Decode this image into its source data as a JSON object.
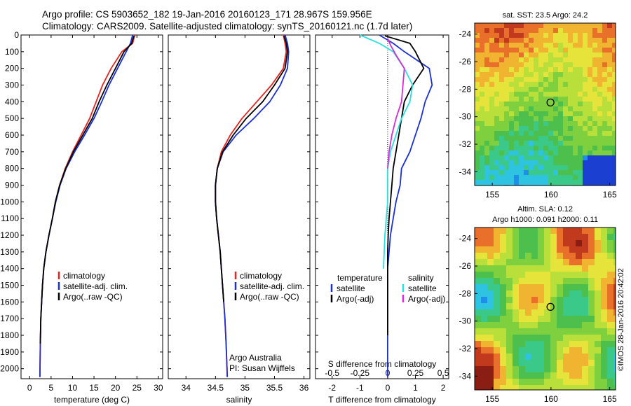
{
  "header": {
    "line1": "Argo profile: CS 5903652_182 19-Jan-2016 20160123_171 28.967S 159.956E",
    "line2": "Climatology: CARS2009. Satellite-adjusted climatology: synTS_20160121.nc (1.7d later)"
  },
  "colors": {
    "climatology": "#e8231e",
    "satellite": "#1a2fd6",
    "argo": "#000000",
    "sat_salinity": "#28e0e0",
    "argo_salinity": "#d82cd8"
  },
  "charts": [
    {
      "id": "temperature",
      "type": "line",
      "xlabel": "temperature (deg C)",
      "xlim": [
        -2,
        31
      ],
      "ylim": [
        0,
        2060
      ],
      "xticks": [
        0,
        5,
        10,
        15,
        20,
        25,
        30
      ],
      "yticks": [
        0,
        100,
        200,
        300,
        400,
        500,
        600,
        700,
        800,
        900,
        1000,
        1100,
        1200,
        1300,
        1400,
        1500,
        1600,
        1700,
        1800,
        1900,
        2000
      ],
      "legend": [
        "climatology",
        "satellite-adj. clim.",
        "Argo(..raw -QC)"
      ],
      "series": [
        {
          "name": "climatology",
          "color": "#e8231e",
          "x": [
            24.5,
            24.0,
            21.5,
            19.0,
            17.0,
            15.5,
            14.0,
            12.0,
            10.0,
            8.3,
            7.0,
            6.0,
            5.3,
            4.5,
            3.8,
            3.3,
            3.0,
            2.8,
            2.6,
            2.5,
            2.4
          ],
          "y": [
            0,
            50,
            100,
            200,
            300,
            400,
            500,
            600,
            700,
            800,
            900,
            1000,
            1100,
            1200,
            1300,
            1400,
            1500,
            1600,
            1700,
            1850,
            2050
          ]
        },
        {
          "name": "satellite-adj. clim.",
          "color": "#1a2fd6",
          "x": [
            24.0,
            23.5,
            22.5,
            20.5,
            18.5,
            16.8,
            15.0,
            12.8,
            10.5,
            8.5,
            7.1,
            6.1,
            5.3,
            4.5,
            3.8,
            3.3,
            3.0,
            2.8,
            2.6,
            2.5,
            2.4
          ],
          "y": [
            0,
            50,
            100,
            200,
            300,
            400,
            500,
            600,
            700,
            800,
            900,
            1000,
            1100,
            1200,
            1300,
            1400,
            1500,
            1600,
            1700,
            1850,
            2050
          ]
        },
        {
          "name": "Argo(..raw -QC)",
          "color": "#000000",
          "x": [
            24.3,
            23.8,
            22.0,
            20.0,
            18.0,
            16.2,
            14.6,
            12.4,
            10.2,
            8.4,
            7.0,
            6.0,
            5.3,
            4.5,
            3.8,
            3.3,
            3.0,
            2.8,
            2.6,
            2.5
          ],
          "y": [
            5,
            50,
            100,
            200,
            300,
            400,
            500,
            600,
            700,
            800,
            900,
            1000,
            1100,
            1200,
            1300,
            1400,
            1500,
            1600,
            1700,
            1850
          ]
        }
      ]
    },
    {
      "id": "salinity",
      "type": "line",
      "xlabel": "salinity",
      "xlim": [
        33.7,
        36.1
      ],
      "ylim": [
        0,
        2060
      ],
      "xticks": [
        34,
        34.5,
        35,
        35.5,
        36
      ],
      "legend": [
        "climatology",
        "satellite-adj. clim.",
        "Argo(..raw -QC)"
      ],
      "annotation": [
        "Argo Australia",
        "PI: Susan Wijffels"
      ],
      "series": [
        {
          "name": "climatology",
          "color": "#e8231e",
          "x": [
            35.65,
            35.68,
            35.7,
            35.65,
            35.45,
            35.2,
            34.95,
            34.75,
            34.6,
            34.53,
            34.5,
            34.5,
            34.52,
            34.55,
            34.58,
            34.6,
            34.62,
            34.64,
            34.66,
            34.68,
            34.7
          ],
          "y": [
            0,
            50,
            100,
            200,
            300,
            400,
            500,
            600,
            700,
            800,
            900,
            1000,
            1100,
            1200,
            1300,
            1400,
            1500,
            1600,
            1700,
            1850,
            2050
          ]
        },
        {
          "name": "satellite-adj. clim.",
          "color": "#1a2fd6",
          "x": [
            35.68,
            35.72,
            35.74,
            35.72,
            35.6,
            35.42,
            35.15,
            34.85,
            34.63,
            34.53,
            34.5,
            34.5,
            34.52,
            34.55,
            34.58,
            34.6,
            34.62,
            34.64,
            34.66,
            34.68,
            34.7
          ],
          "y": [
            0,
            50,
            100,
            200,
            300,
            400,
            500,
            600,
            700,
            800,
            900,
            1000,
            1100,
            1200,
            1300,
            1400,
            1500,
            1600,
            1700,
            1850,
            2050
          ]
        },
        {
          "name": "Argo(..raw -QC)",
          "color": "#000000",
          "x": [
            35.66,
            35.7,
            35.72,
            35.68,
            35.5,
            35.3,
            35.02,
            34.8,
            34.62,
            34.53,
            34.5,
            34.5,
            34.52,
            34.55,
            34.58,
            34.6,
            34.62,
            34.64
          ],
          "y": [
            5,
            50,
            100,
            200,
            300,
            400,
            500,
            600,
            700,
            800,
            900,
            1000,
            1100,
            1200,
            1300,
            1400,
            1500,
            1600
          ]
        }
      ]
    },
    {
      "id": "difference",
      "type": "line",
      "xlabel": "T difference from climatology",
      "xlabel_top": "S difference from climatology",
      "xlim": [
        -2.6,
        2.2
      ],
      "ylim": [
        0,
        2060
      ],
      "xticks": [
        -2,
        -1,
        0,
        1,
        2
      ],
      "sticks": [
        -0.5,
        -0.25,
        0,
        0.25,
        0.5
      ],
      "legend_left_title": "temperature",
      "legend_right_title": "salinity",
      "legend_left": [
        "satellite",
        "Argo(-adj)"
      ],
      "legend_right": [
        "satellite",
        "Argo(-adj)"
      ],
      "series": [
        {
          "name": "T satellite",
          "color": "#1a2fd6",
          "x": [
            -0.3,
            0.2,
            0.6,
            1.5,
            1.6,
            1.35,
            1.2,
            1.0,
            0.8,
            0.5,
            0.45,
            0.3,
            0.2,
            0.1,
            0.05,
            0.0,
            0.0,
            0.0,
            0.0,
            0.0
          ],
          "y": [
            0,
            50,
            100,
            200,
            300,
            400,
            500,
            600,
            700,
            800,
            900,
            1000,
            1100,
            1200,
            1300,
            1400,
            1500,
            1600,
            1800,
            2050
          ]
        },
        {
          "name": "T Argo(-adj)",
          "color": "#000000",
          "x": [
            -0.1,
            0.8,
            1.0,
            1.3,
            0.9,
            0.6,
            0.5,
            0.4,
            0.3,
            0.2,
            0.15,
            0.1,
            0.05,
            0.02,
            0.0,
            0.0,
            0.0
          ],
          "y": [
            5,
            50,
            100,
            200,
            300,
            400,
            500,
            600,
            700,
            800,
            900,
            1000,
            1100,
            1200,
            1300,
            1500,
            1800
          ]
        },
        {
          "name": "S satellite",
          "color": "#28e0e0",
          "x": [
            -1.0,
            -0.3,
            0.2,
            0.6,
            0.9,
            0.8,
            0.5,
            0.3,
            0.1,
            0.0,
            0.0,
            0.0,
            -0.1,
            -0.15
          ],
          "y": [
            0,
            50,
            100,
            200,
            300,
            400,
            500,
            600,
            700,
            800,
            900,
            1000,
            1200,
            1400
          ]
        },
        {
          "name": "S Argo(-adj)",
          "color": "#d82cd8",
          "x": [
            0.0,
            0.1,
            0.3,
            0.6,
            0.55,
            0.5,
            0.3,
            0.15,
            0.05,
            0.0
          ],
          "y": [
            20,
            60,
            120,
            200,
            300,
            400,
            500,
            600,
            700,
            800
          ]
        }
      ]
    }
  ],
  "maps": [
    {
      "id": "sst",
      "title": "sat. SST: 23.5 Argo: 24.2",
      "xticks": [
        155,
        160,
        165
      ],
      "yticks": [
        -24,
        -26,
        -28,
        -30,
        -32,
        -34
      ],
      "xlim": [
        153.5,
        165.5
      ],
      "ylim": [
        -35,
        -23.2
      ],
      "marker": {
        "lon": 159.956,
        "lat": -28.967
      }
    },
    {
      "id": "sla",
      "title_line1": "Altim. SLA: 0.12",
      "title_line2": "Argo h1000: 0.091 h2000: 0.11",
      "xticks": [
        155,
        160,
        165
      ],
      "yticks": [
        -24,
        -26,
        -28,
        -30,
        -32,
        -34
      ],
      "xlim": [
        153.5,
        165.5
      ],
      "ylim": [
        -35,
        -23.2
      ],
      "marker": {
        "lon": 159.956,
        "lat": -28.967
      }
    }
  ],
  "stamp": "©IMOS 28-Jan-2016 20:42:02"
}
